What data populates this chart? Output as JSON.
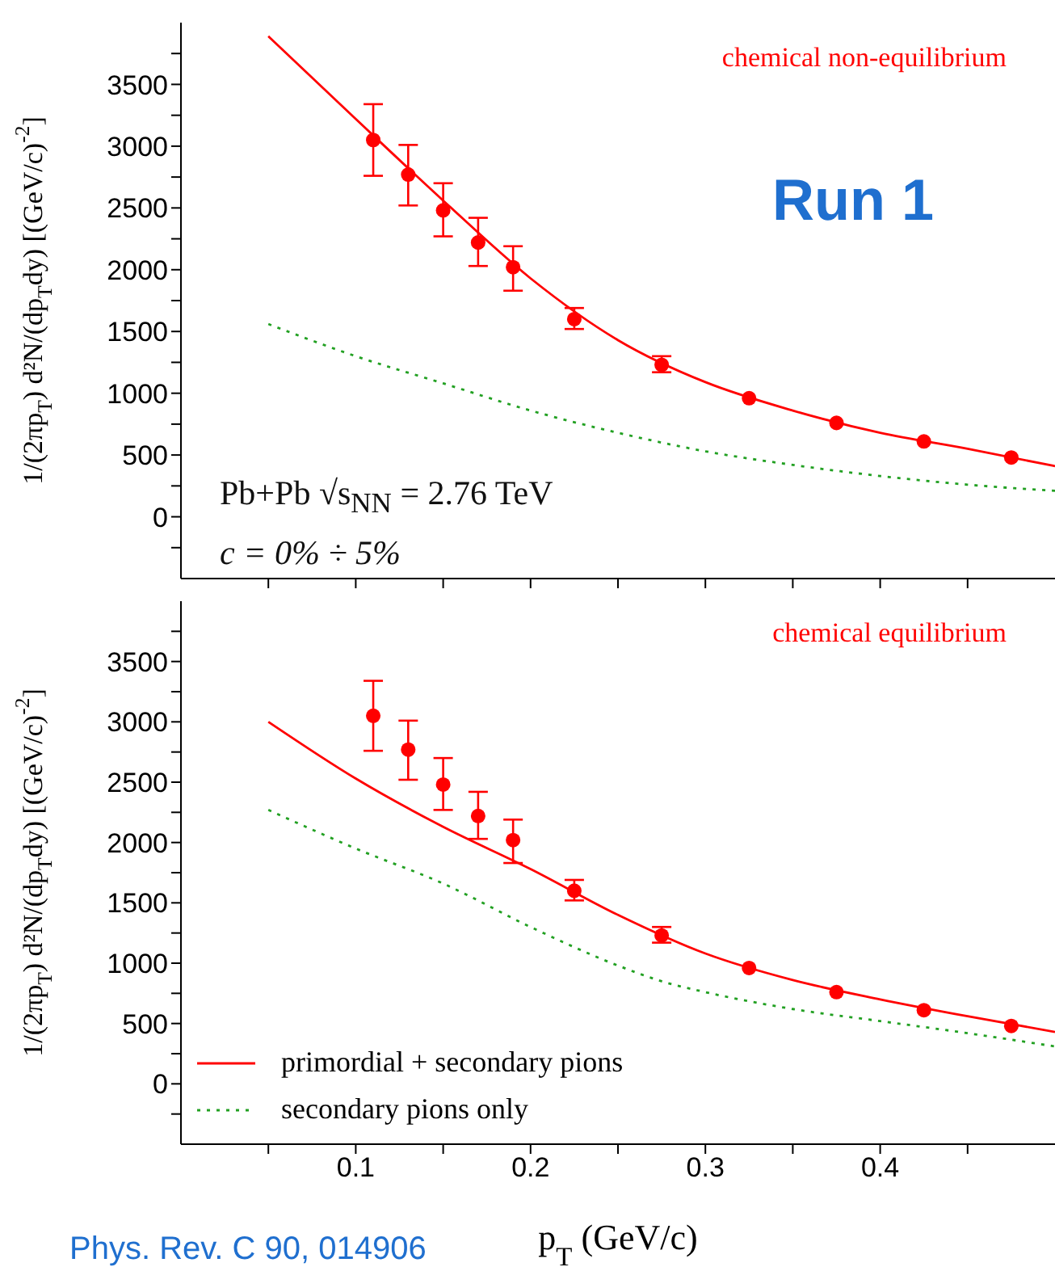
{
  "chart_data": [
    {
      "type": "line",
      "ylabel": "1/(2πp$_{T}$) d²N/(dp$_{T}$dy) [(GeV/c)$^{-2}$]",
      "xlim": [
        0,
        0.5
      ],
      "ylim": [
        -500,
        4000
      ],
      "xticks": [
        {
          "value": 0.05,
          "label": null
        },
        0.1,
        {
          "value": 0.15,
          "label": null
        },
        0.2,
        {
          "value": 0.25,
          "label": null
        },
        0.3,
        {
          "value": 0.35,
          "label": null
        },
        0.4,
        {
          "value": 0.45,
          "label": null
        }
      ],
      "yticks": [
        {
          "value": -250,
          "label": null
        },
        0,
        {
          "value": 250,
          "label": null
        },
        500,
        {
          "value": 750,
          "label": null
        },
        1000,
        {
          "value": 1250,
          "label": null
        },
        1500,
        {
          "value": 1750,
          "label": null
        },
        2000,
        {
          "value": 2250,
          "label": null
        },
        2500,
        {
          "value": 2750,
          "label": null
        },
        3000,
        {
          "value": 3250,
          "label": null
        },
        3500,
        {
          "value": 3750,
          "label": null
        }
      ],
      "tick_labels": "y",
      "grid": false,
      "legend": false,
      "annotations": [
        "chemical non-equilibrium",
        "Run 1",
        "Pb+Pb √s$_{NN}$ = 2.76 TeV",
        "c = 0% ÷ 5%"
      ],
      "series": [
        {
          "type": "scatter",
          "color": "#ff0000",
          "marker": "circle",
          "x": [
            0.11,
            0.13,
            0.15,
            0.17,
            0.19,
            0.225,
            0.275,
            0.325,
            0.375,
            0.425,
            0.475
          ],
          "values": [
            3050,
            2770,
            2480,
            2220,
            2020,
            1600,
            1230,
            960,
            760,
            610,
            480
          ],
          "errors": [
            [
              2760,
              3340
            ],
            [
              2520,
              3010
            ],
            [
              2270,
              2700
            ],
            [
              2030,
              2420
            ],
            [
              1830,
              2190
            ],
            [
              1520,
              1690
            ],
            [
              1170,
              1300
            ],
            null,
            null,
            null,
            null
          ]
        },
        {
          "type": "line",
          "color": "#ff0000",
          "line_style": "solid",
          "marker": "none",
          "x": [
            0.05,
            0.1,
            0.15,
            0.2,
            0.25,
            0.3,
            0.35,
            0.4,
            0.45,
            0.5
          ],
          "values": [
            3890,
            3220,
            2560,
            1930,
            1430,
            1090,
            860,
            680,
            550,
            410
          ]
        },
        {
          "type": "line",
          "color": "#22a022",
          "line_style": "dotted",
          "marker": "none",
          "x": [
            0.05,
            0.1,
            0.15,
            0.2,
            0.25,
            0.3,
            0.35,
            0.4,
            0.45,
            0.5
          ],
          "values": [
            1560,
            1300,
            1080,
            860,
            680,
            530,
            420,
            330,
            260,
            210
          ]
        }
      ]
    },
    {
      "type": "line",
      "ylabel": "1/(2πp$_{T}$) d²N/(dp$_{T}$dy) [(GeV/c)$^{-2}$]",
      "xlabel": "p$_{T}$ (GeV/c)",
      "xlim": [
        0,
        0.5
      ],
      "ylim": [
        -500,
        4000
      ],
      "xticks": [
        {
          "value": 0.05,
          "label": null
        },
        0.1,
        {
          "value": 0.15,
          "label": null
        },
        0.2,
        {
          "value": 0.25,
          "label": null
        },
        0.3,
        {
          "value": 0.35,
          "label": null
        },
        0.4,
        {
          "value": 0.45,
          "label": null
        }
      ],
      "yticks": [
        {
          "value": -250,
          "label": null
        },
        0,
        {
          "value": 250,
          "label": null
        },
        500,
        {
          "value": 750,
          "label": null
        },
        1000,
        {
          "value": 1250,
          "label": null
        },
        1500,
        {
          "value": 1750,
          "label": null
        },
        2000,
        {
          "value": 2250,
          "label": null
        },
        2500,
        {
          "value": 2750,
          "label": null
        },
        3000,
        {
          "value": 3250,
          "label": null
        },
        3500,
        {
          "value": 3750,
          "label": null
        }
      ],
      "grid": false,
      "legend": "bottom left",
      "annotations": [
        "chemical equilibrium",
        "Phys. Rev. C 90, 014906"
      ],
      "series": [
        {
          "type": "scatter",
          "color": "#ff0000",
          "marker": "circle",
          "x": [
            0.11,
            0.13,
            0.15,
            0.17,
            0.19,
            0.225,
            0.275,
            0.325,
            0.375,
            0.425,
            0.475
          ],
          "values": [
            3050,
            2770,
            2480,
            2220,
            2020,
            1600,
            1230,
            960,
            760,
            610,
            480
          ],
          "errors": [
            [
              2760,
              3340
            ],
            [
              2520,
              3010
            ],
            [
              2270,
              2700
            ],
            [
              2030,
              2420
            ],
            [
              1830,
              2190
            ],
            [
              1520,
              1690
            ],
            [
              1170,
              1300
            ],
            null,
            null,
            null,
            null
          ]
        },
        {
          "type": "line",
          "name": "primordial + secondary pions",
          "color": "#ff0000",
          "line_style": "solid",
          "marker": "none",
          "x": [
            0.05,
            0.1,
            0.15,
            0.2,
            0.25,
            0.3,
            0.35,
            0.4,
            0.45,
            0.5
          ],
          "values": [
            3000,
            2530,
            2130,
            1780,
            1400,
            1080,
            860,
            700,
            560,
            430
          ]
        },
        {
          "type": "line",
          "name": "secondary pions only",
          "color": "#22a022",
          "line_style": "dotted",
          "marker": "none",
          "x": [
            0.05,
            0.1,
            0.15,
            0.2,
            0.25,
            0.275,
            0.3,
            0.35,
            0.4,
            0.45,
            0.5
          ],
          "values": [
            2270,
            1950,
            1660,
            1300,
            980,
            850,
            760,
            620,
            520,
            420,
            310
          ]
        }
      ]
    }
  ]
}
